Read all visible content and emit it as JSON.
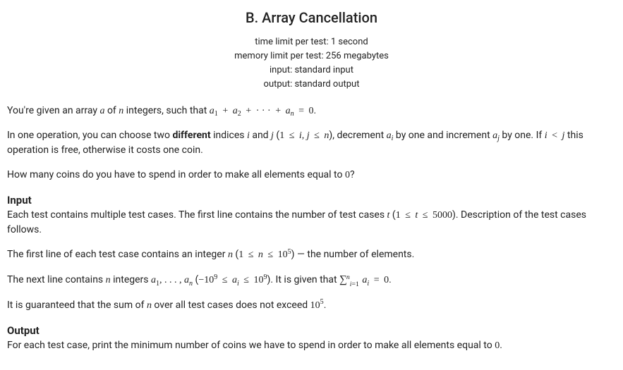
{
  "title": "B. Array Cancellation",
  "meta": {
    "time_limit": "time limit per test: 1 second",
    "memory_limit": "memory limit per test: 256 megabytes",
    "input": "input: standard input",
    "output": "output: standard output"
  },
  "statement": {
    "p1_pre": "You're given an array ",
    "p1_a": "a",
    "p1_mid1": " of ",
    "p1_n": "n",
    "p1_mid2": " integers, such that ",
    "p1_eq_a": "a",
    "p1_eq_s1": "1",
    "p1_eq_plus1": " + ",
    "p1_eq_s2": "2",
    "p1_eq_plus2": " + ",
    "p1_eq_dots": "· · ·",
    "p1_eq_plus3": " + ",
    "p1_eq_sn": "n",
    "p1_eq_eq": " = ",
    "p1_eq_zero": "0",
    "p1_end": ".",
    "p2_a": "In one operation, you can choose two ",
    "p2_diff": "different",
    "p2_b": " indices ",
    "p2_i": "i",
    "p2_and": " and ",
    "p2_j": "j",
    "p2_open": " (",
    "p2_one": "1",
    "p2_le": " ≤ ",
    "p2_comma": ", ",
    "p2_n": "n",
    "p2_close": "), decrement ",
    "p2_ai_a": "a",
    "p2_ai_i": "i",
    "p2_mid": " by one and increment ",
    "p2_aj_a": "a",
    "p2_aj_j": "j",
    "p2_byone": " by one. If ",
    "p2_lt": " < ",
    "p2_tail": " this operation is free, otherwise it costs one coin.",
    "p3_a": "How many coins do you have to spend in order to make all elements equal to ",
    "p3_zero": "0",
    "p3_b": "?"
  },
  "input": {
    "heading": "Input",
    "p1_a": "Each test contains multiple test cases. The first line contains the number of test cases ",
    "p1_t": "t",
    "p1_open": " (",
    "p1_one": "1",
    "p1_le": " ≤ ",
    "p1_max": "5000",
    "p1_close": "). Description of the test cases follows.",
    "p2_a": "The first line of each test case contains an integer ",
    "p2_n": "n",
    "p2_open": " (",
    "p2_one": "1",
    "p2_le": " ≤ ",
    "p2_ten": "10",
    "p2_exp": "5",
    "p2_close": ")  — the number of elements.",
    "p3_a": "The next line contains ",
    "p3_n": "n",
    "p3_b": " integers ",
    "p3_a1_a": "a",
    "p3_a1_1": "1",
    "p3_dots": ", . . . , ",
    "p3_an_a": "a",
    "p3_an_n": "n",
    "p3_open": " (",
    "p3_neg": "−",
    "p3_ten": "10",
    "p3_exp": "9",
    "p3_le": " ≤ ",
    "p3_ai_a": "a",
    "p3_ai_i": "i",
    "p3_close": "). It is given that ",
    "p3_sum": "∑",
    "p3_sumlo_i": "i",
    "p3_sumlo_eq": "=",
    "p3_sumlo_1": "1",
    "p3_sumhi": "n",
    "p3_eq": " = ",
    "p3_zero": "0",
    "p3_end": ".",
    "p4_a": "It is guaranteed that the sum of ",
    "p4_n": "n",
    "p4_b": " over all test cases does not exceed ",
    "p4_ten": "10",
    "p4_exp": "5",
    "p4_end": "."
  },
  "output": {
    "heading": "Output",
    "p1_a": "For each test case, print the minimum number of coins we have to spend in order to make all elements equal to ",
    "p1_zero": "0",
    "p1_b": "."
  }
}
